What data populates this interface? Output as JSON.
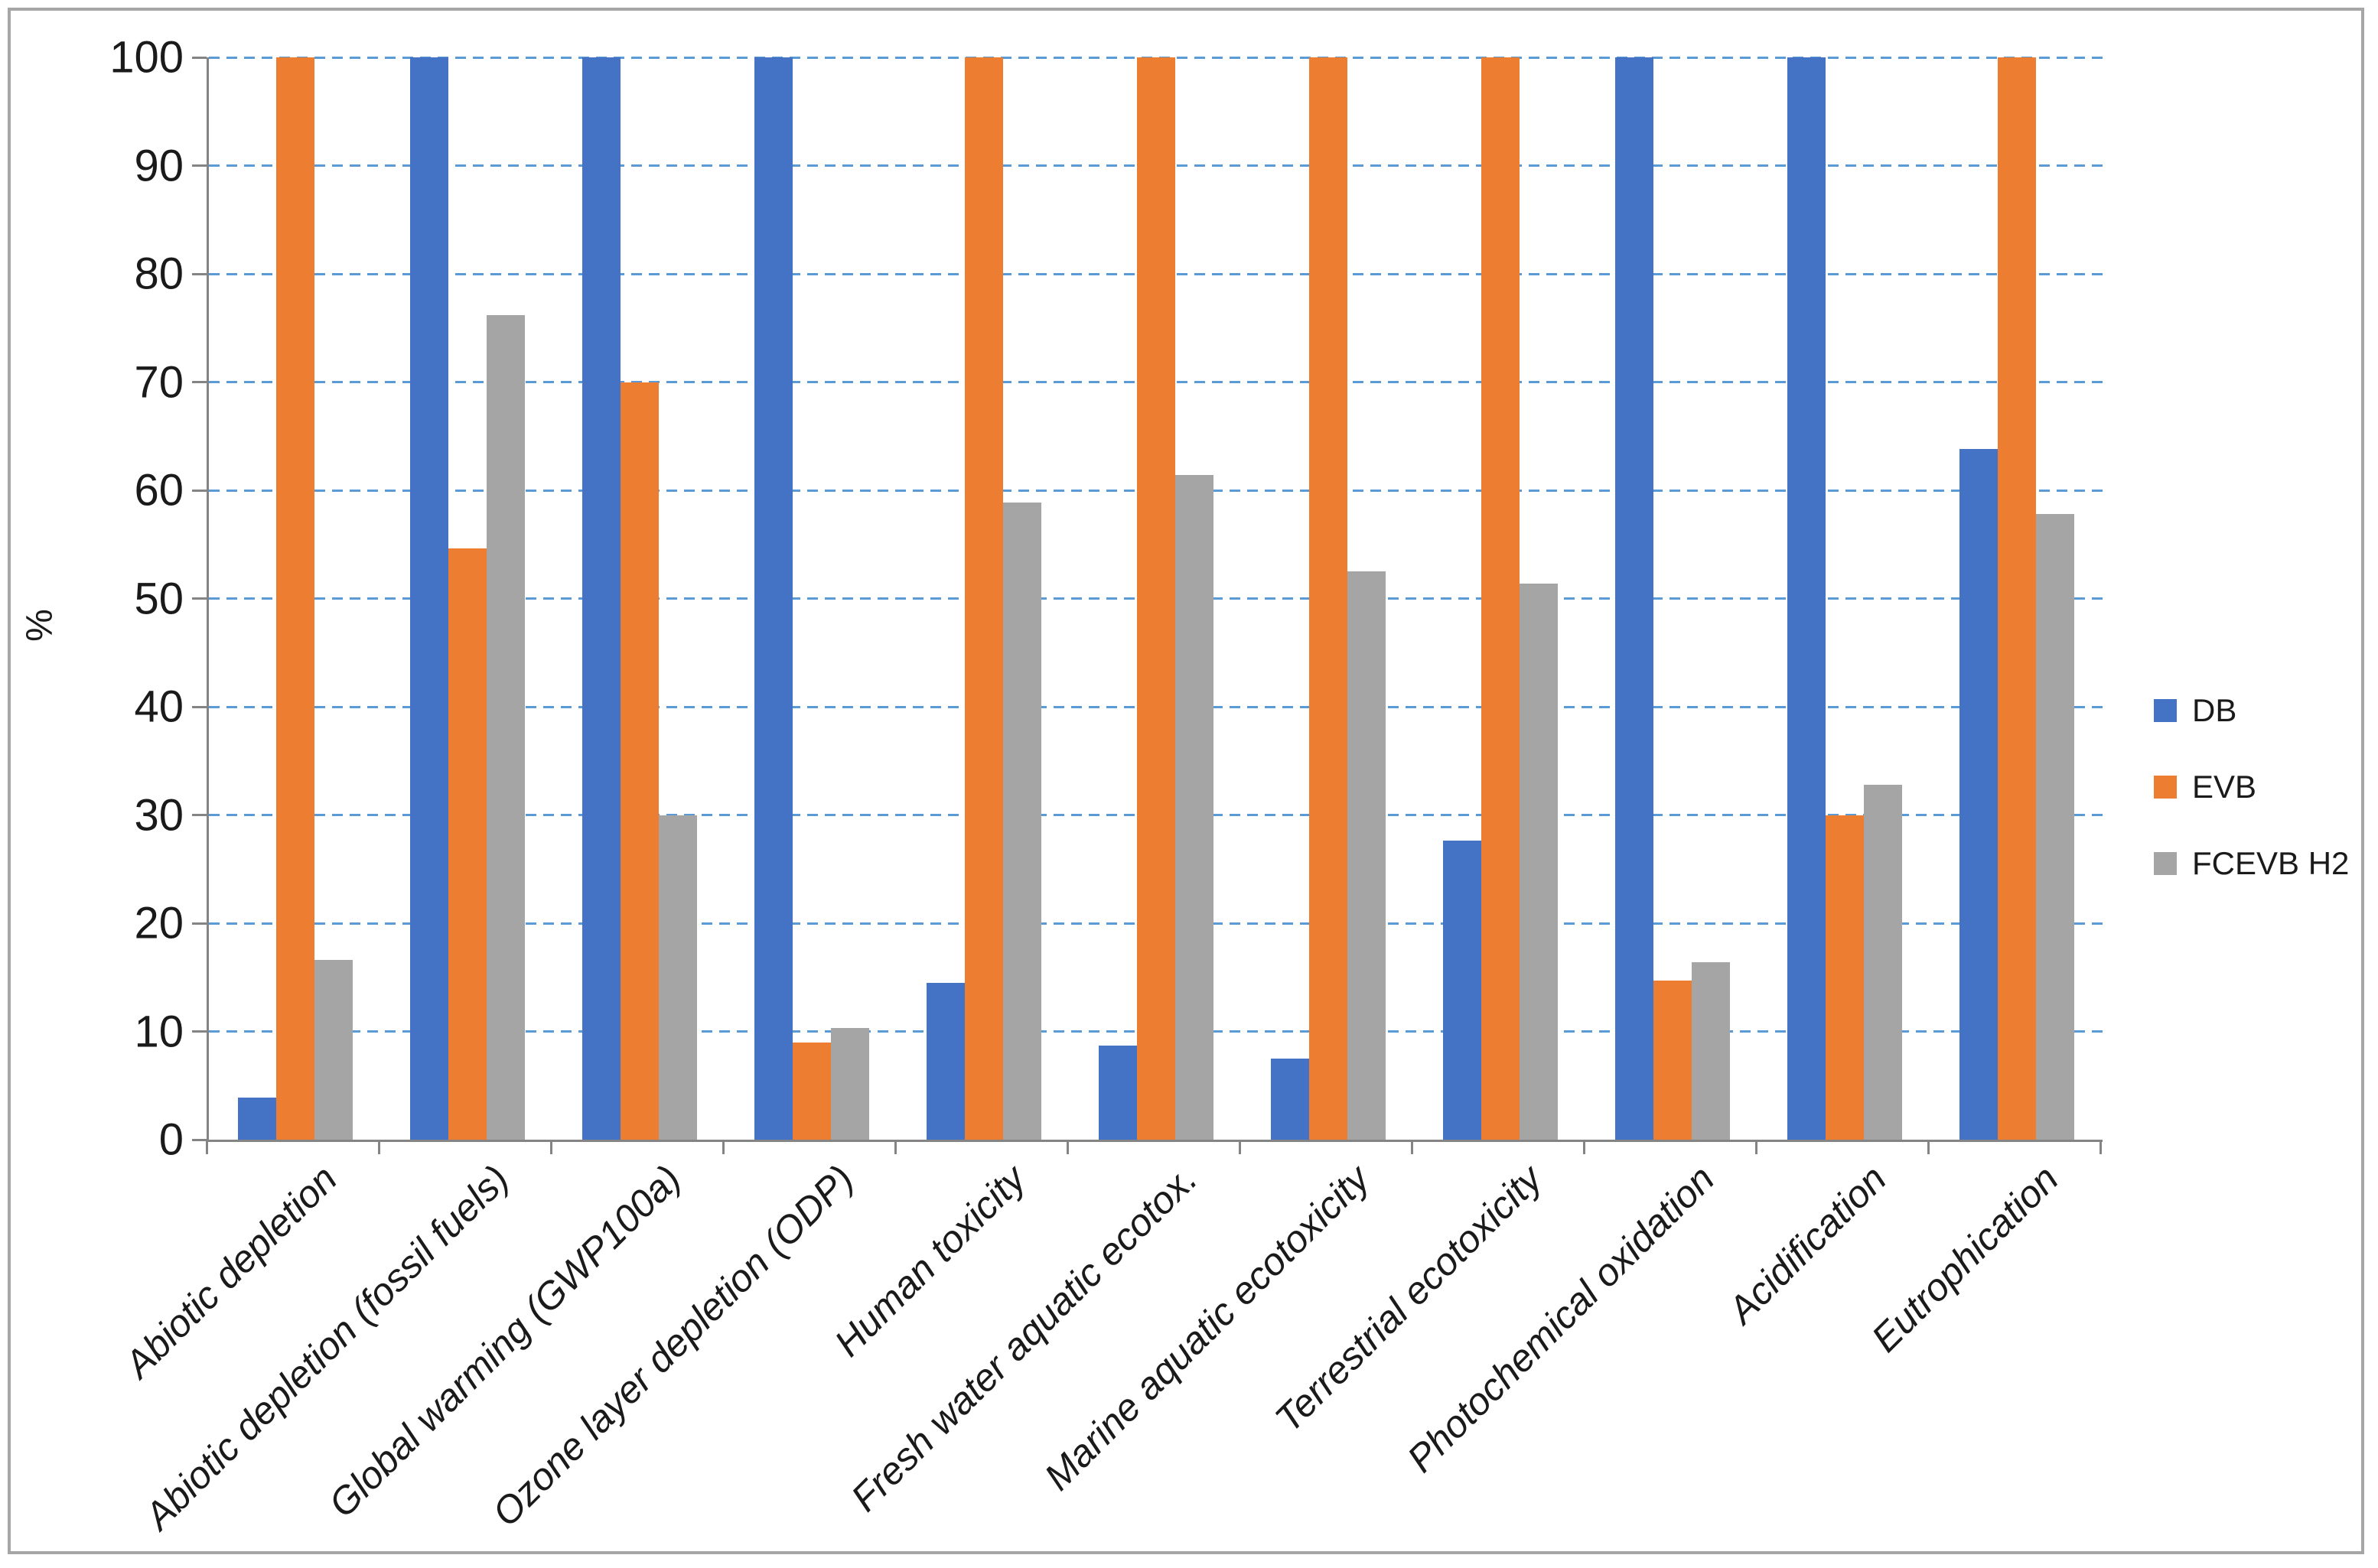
{
  "chart_data": {
    "type": "bar",
    "title": "",
    "xlabel": "",
    "ylabel": "%",
    "ylim": [
      0,
      100
    ],
    "yticks": [
      0,
      10,
      20,
      30,
      40,
      50,
      60,
      70,
      80,
      90,
      100
    ],
    "grid": "horizontal dashed",
    "legend_position": "right",
    "categories": [
      "Abiotic depletion",
      "Abiotic depletion (fossil fuels)",
      "Global warming (GWP100a)",
      "Ozone layer depletion (ODP)",
      "Human toxicity",
      "Fresh water aquatic ecotox.",
      "Marine aquatic ecotoxicity",
      "Terrestrial ecotoxicity",
      "Photochemical oxidation",
      "Acidification",
      "Eutrophication"
    ],
    "series": [
      {
        "name": "DB",
        "color": "#4472C4",
        "values": [
          3.9,
          100,
          100,
          100,
          14.5,
          8.7,
          7.5,
          27.6,
          100,
          100,
          63.8
        ]
      },
      {
        "name": "EVB",
        "color": "#ED7D31",
        "values": [
          100,
          54.6,
          70,
          9,
          100,
          100,
          100,
          100,
          14.7,
          30,
          100
        ]
      },
      {
        "name": "FCEVB H2",
        "color": "#A5A5A5",
        "values": [
          16.6,
          76.2,
          30,
          10.3,
          58.9,
          61.4,
          52.5,
          51.4,
          16.4,
          32.8,
          57.8
        ]
      }
    ],
    "style": {
      "gridline_color": "#5B9BD5",
      "axis_color": "#848484",
      "frame_border_color": "#A6A6A6",
      "text_color": "#1A1A1A",
      "background": "#FFFFFF"
    }
  }
}
